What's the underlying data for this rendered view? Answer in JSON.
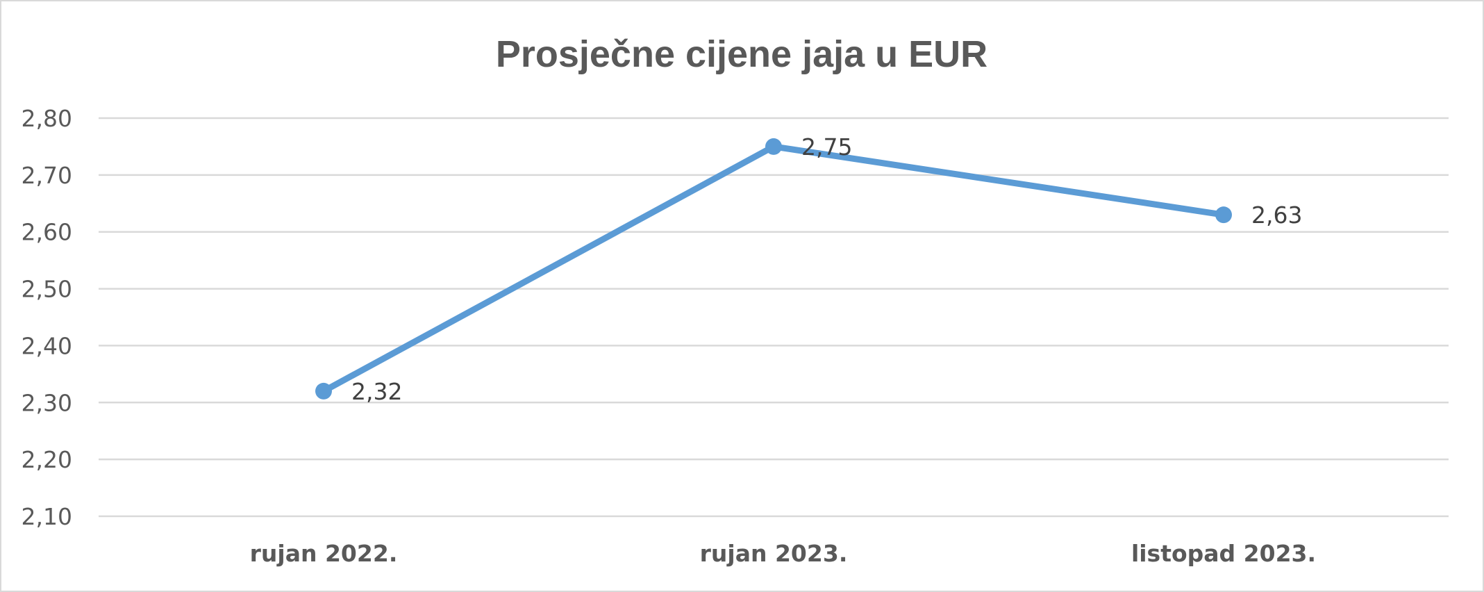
{
  "chart_data": {
    "type": "line",
    "title": "Prosječne cijene jaja u EUR",
    "categories": [
      "rujan 2022.",
      "rujan 2023.",
      "listopad 2023."
    ],
    "series": [
      {
        "values": [
          2.32,
          2.75,
          2.63
        ],
        "labels": [
          "2,32",
          "2,75",
          "2,63"
        ]
      }
    ],
    "ylim": [
      2.1,
      2.8
    ],
    "yticks": [
      2.1,
      2.2,
      2.3,
      2.4,
      2.5,
      2.6,
      2.7,
      2.8
    ],
    "ytick_labels": [
      "2,10",
      "2,20",
      "2,30",
      "2,40",
      "2,50",
      "2,60",
      "2,70",
      "2,80"
    ],
    "grid": true,
    "legend": "none",
    "colors": {
      "series": "#5b9bd5",
      "grid": "#d9d9d9",
      "text": "#595959"
    }
  }
}
